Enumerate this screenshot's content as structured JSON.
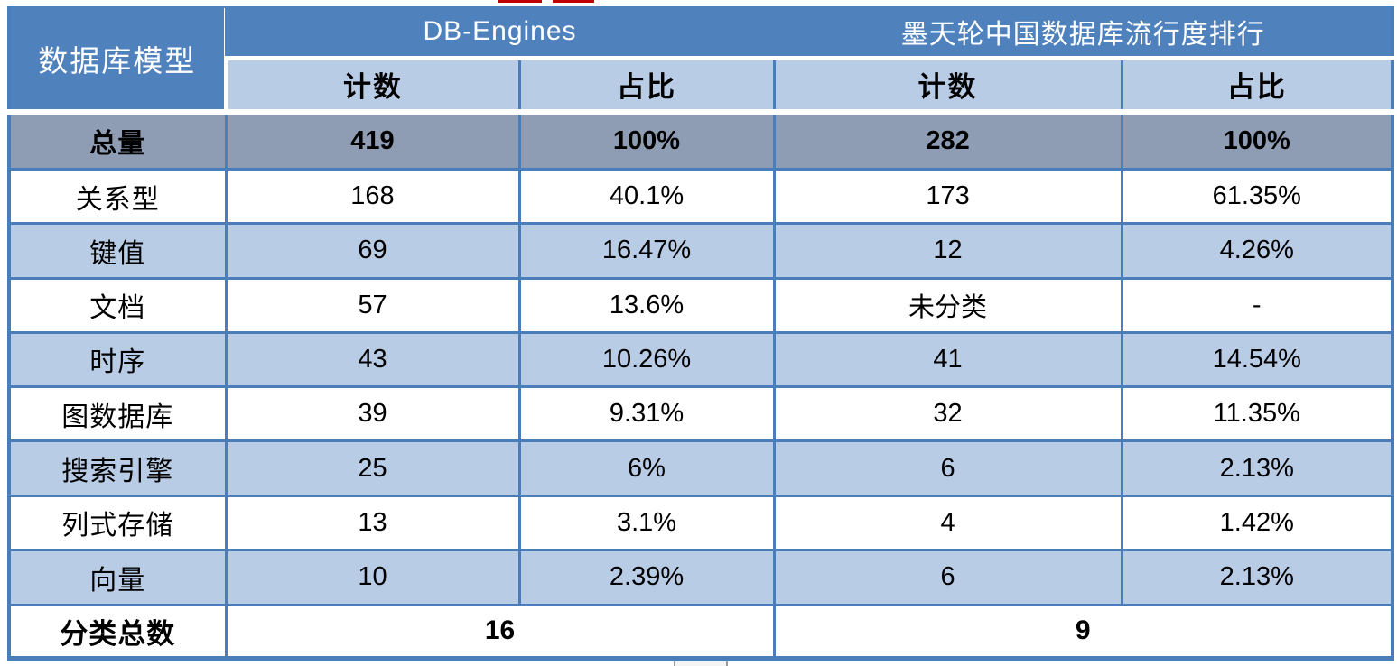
{
  "colors": {
    "header_blue": "#4f81bd",
    "subheader_light_blue": "#b9cce5",
    "total_row_gray": "#8e9db4",
    "alt_row_blue": "#b9cce5",
    "border_blue": "#4a7eba",
    "annotation_red": "#c00000"
  },
  "table": {
    "corner_header": "数据库模型",
    "groups": [
      {
        "label": "DB-Engines",
        "columns": [
          "计数",
          "占比"
        ]
      },
      {
        "label": "墨天轮中国数据库流行度排行",
        "columns": [
          "计数",
          "占比"
        ]
      }
    ],
    "total_row": {
      "label": "总量",
      "values": [
        "419",
        "100%",
        "282",
        "100%"
      ]
    },
    "rows": [
      {
        "label": "关系型",
        "values": [
          "168",
          "40.1%",
          "173",
          "61.35%"
        ]
      },
      {
        "label": "键值",
        "values": [
          "69",
          "16.47%",
          "12",
          "4.26%"
        ]
      },
      {
        "label": "文档",
        "values": [
          "57",
          "13.6%",
          "未分类",
          "-"
        ]
      },
      {
        "label": "时序",
        "values": [
          "43",
          "10.26%",
          "41",
          "14.54%"
        ]
      },
      {
        "label": "图数据库",
        "values": [
          "39",
          "9.31%",
          "32",
          "11.35%"
        ]
      },
      {
        "label": "搜索引擎",
        "values": [
          "25",
          "6%",
          "6",
          "2.13%"
        ]
      },
      {
        "label": "列式存储",
        "values": [
          "13",
          "3.1%",
          "4",
          "1.42%"
        ]
      },
      {
        "label": "向量",
        "values": [
          "10",
          "2.39%",
          "6",
          "2.13%"
        ]
      }
    ],
    "footer_row": {
      "label": "分类总数",
      "values": [
        "16",
        "9"
      ]
    }
  },
  "chart_data": {
    "type": "table",
    "columns": [
      "数据库模型",
      "DB-Engines 计数",
      "DB-Engines 占比",
      "墨天轮中国数据库流行度排行 计数",
      "墨天轮中国数据库流行度排行 占比"
    ],
    "rows": [
      [
        "总量",
        "419",
        "100%",
        "282",
        "100%"
      ],
      [
        "关系型",
        "168",
        "40.1%",
        "173",
        "61.35%"
      ],
      [
        "键值",
        "69",
        "16.47%",
        "12",
        "4.26%"
      ],
      [
        "文档",
        "57",
        "13.6%",
        "未分类",
        "-"
      ],
      [
        "时序",
        "43",
        "10.26%",
        "41",
        "14.54%"
      ],
      [
        "图数据库",
        "39",
        "9.31%",
        "32",
        "11.35%"
      ],
      [
        "搜索引擎",
        "25",
        "6%",
        "6",
        "2.13%"
      ],
      [
        "列式存储",
        "13",
        "3.1%",
        "4",
        "1.42%"
      ],
      [
        "向量",
        "10",
        "2.39%",
        "6",
        "2.13%"
      ],
      [
        "分类总数",
        "16",
        "",
        "9",
        ""
      ]
    ]
  }
}
